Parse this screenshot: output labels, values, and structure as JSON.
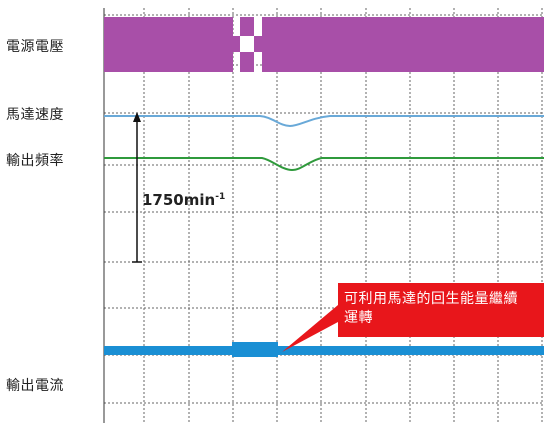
{
  "labels": {
    "supply_voltage": "電源電壓",
    "motor_speed": "馬達速度",
    "output_frequency": "輸出頻率",
    "output_current": "輸出電流"
  },
  "annotation": {
    "speed_value": "1750min",
    "speed_exponent": "-1"
  },
  "callout": {
    "line1": "可利用馬達的回生能量繼續",
    "line2": "運轉"
  },
  "colors": {
    "voltage": "#a84fa8",
    "speed": "#69a9d8",
    "frequency": "#2f9a3c",
    "current": "#1a8fd4",
    "callout": "#e8161b",
    "grid": "#666666"
  },
  "chart_data": {
    "type": "line",
    "title": "",
    "xlabel": "",
    "ylabel": "",
    "grid": true,
    "series": [
      {
        "name": "電源電壓",
        "values": [
          1,
          1,
          1,
          0,
          0,
          1,
          1,
          1,
          1,
          1
        ]
      },
      {
        "name": "馬達速度",
        "values": [
          1750,
          1750,
          1750,
          1750,
          1720,
          1690,
          1730,
          1750,
          1750,
          1750
        ]
      },
      {
        "name": "輸出頻率",
        "values": [
          1,
          1,
          1,
          1,
          0.98,
          0.97,
          0.99,
          1,
          1,
          1
        ]
      },
      {
        "name": "輸出電流",
        "values": [
          1,
          1,
          1,
          1.1,
          1.1,
          1,
          1,
          1,
          1,
          1
        ]
      }
    ]
  }
}
